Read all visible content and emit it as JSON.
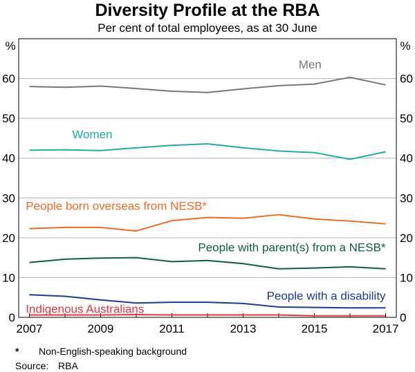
{
  "title": "Diversity Profile at the RBA",
  "subtitle": "Per cent of total employees, as at 30 June",
  "footnotes": {
    "star_symbol": "*",
    "star_text": "Non-English-speaking background",
    "source_label": "Source:",
    "source_text": "RBA"
  },
  "chart_data": {
    "type": "line",
    "title": "Diversity Profile at the RBA",
    "subtitle": "Per cent of total employees, as at 30 June",
    "ylabel_left": "%",
    "ylabel_right": "%",
    "x": [
      2007,
      2008,
      2009,
      2010,
      2011,
      2012,
      2013,
      2014,
      2015,
      2016,
      2017
    ],
    "xlim": [
      2006.7,
      2017.3
    ],
    "xticks": [
      2007,
      2009,
      2011,
      2013,
      2015,
      2017
    ],
    "ylim": [
      0,
      70
    ],
    "yticks": [
      0,
      10,
      20,
      30,
      40,
      50,
      60
    ],
    "grid": "horizontal",
    "series": [
      {
        "name": "Men",
        "color": "#777777",
        "values": [
          58.0,
          57.8,
          58.1,
          57.5,
          56.8,
          56.5,
          57.4,
          58.2,
          58.6,
          60.3,
          58.4
        ]
      },
      {
        "name": "Women",
        "color": "#1aaf9f",
        "values": [
          42.0,
          42.1,
          41.9,
          42.6,
          43.2,
          43.6,
          42.6,
          41.8,
          41.4,
          39.7,
          41.6
        ]
      },
      {
        "name": "People born overseas from NESB*",
        "color": "#f26b21",
        "values": [
          22.3,
          22.6,
          22.6,
          21.7,
          24.3,
          25.1,
          24.9,
          25.8,
          24.7,
          24.2,
          23.5
        ]
      },
      {
        "name": "People with parent(s) from a NESB*",
        "color": "#0e5c47",
        "values": [
          13.8,
          14.6,
          14.9,
          15.0,
          14.0,
          14.3,
          13.5,
          12.2,
          12.4,
          12.7,
          12.2
        ]
      },
      {
        "name": "People with a disability",
        "color": "#1c3a8f",
        "values": [
          5.7,
          5.3,
          4.4,
          3.6,
          3.8,
          3.8,
          3.5,
          2.6,
          2.5,
          2.4,
          2.4
        ]
      },
      {
        "name": "Indigenous Australians",
        "color": "#e8343e",
        "values": [
          0.6,
          0.6,
          0.6,
          0.7,
          0.6,
          0.6,
          0.6,
          0.6,
          0.4,
          0.4,
          0.4
        ]
      }
    ]
  }
}
